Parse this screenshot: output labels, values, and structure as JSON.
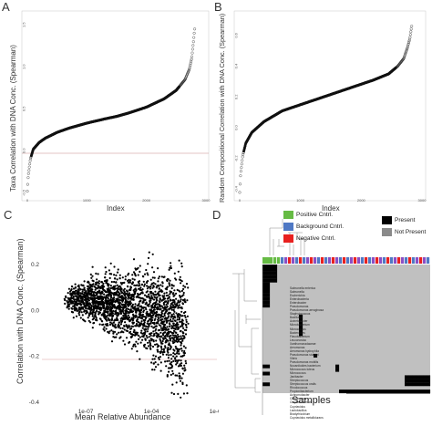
{
  "panels": {
    "a": {
      "label": "A",
      "ylabel": "Taxa Correlation with DNA Conc. (Spearman)",
      "xlabel": "Index",
      "yticks": [
        "-0.5",
        "0.0",
        "0.5",
        "1.0",
        "1.5"
      ],
      "xticks": [
        "0",
        "1000",
        "2000",
        "3000"
      ]
    },
    "b": {
      "label": "B",
      "ylabel": "Random Compositional Correlation with DNA Conc. (Spearman)",
      "xlabel": "Index",
      "yticks": [
        "-0.4",
        "-0.2",
        "0.0",
        "0.2",
        "0.4",
        "0.6"
      ],
      "xticks": [
        "0",
        "1000",
        "2000",
        "3000"
      ]
    },
    "c": {
      "label": "C",
      "ylabel": "Correlation with DNA Conc. (Spearman)",
      "xlabel": "Mean Relative Abundance",
      "yticks": [
        "0.2",
        "0.0",
        "-0.2",
        "-0.4"
      ],
      "xticks": [
        "1e-07",
        "1e-04",
        "1e-01"
      ]
    },
    "d": {
      "label": "D",
      "xlabel": "Samples"
    }
  },
  "legend": {
    "controls": [
      {
        "label": "Positive Cntrl.",
        "color": "#66bb44"
      },
      {
        "label": "Background Cntrl.",
        "color": "#4f78c4"
      },
      {
        "label": "Negative Cntrl.",
        "color": "#e8201f"
      }
    ],
    "presence": [
      {
        "label": "Present",
        "color": "#000000"
      },
      {
        "label": "Not Present",
        "color": "#8a8a8a"
      }
    ]
  },
  "taxa": [
    "Salmonella enterica",
    "Salmonella",
    "Escherichia",
    "Enterobacteria",
    "Enterobacter",
    "Pseudomonas",
    "Pseudomonas aeruginosa",
    "Staphylococcus",
    "Bacillus",
    "Acinetobacter",
    "Microbacterium",
    "Micrococcus",
    "Bacteroides",
    "Flavobacterium",
    "Leuconostoc",
    "Xanthomonadaceae",
    "Aeromonas",
    "Aeromonas hydrophila",
    "Pseudomonas stutzeri",
    "Vibrio",
    "Pseudomonas mobilis",
    "Nocardioides bacterium",
    "Micrococcus luteus",
    "Micrococcus",
    "Janibacter",
    "Streptococcus",
    "Streptococcus oralis",
    "Rhodococcus",
    "Propionibacterium",
    "Achromobacter",
    "Comamonas",
    "Corynebacterium",
    "Cupriavidus",
    "Lactobacillus",
    "Bradyrhizobium",
    "Cupriavidus metallidurans"
  ],
  "chart_data": [
    {
      "panel": "A",
      "type": "scatter",
      "xlabel": "Index",
      "ylabel": "Taxa Correlation with DNA Conc. (Spearman)",
      "xlim": [
        0,
        3000
      ],
      "ylim": [
        -0.55,
        1.6
      ],
      "x": [
        0,
        15,
        50,
        100,
        200,
        300,
        500,
        700,
        1000,
        1300,
        1500,
        1700,
        2000,
        2300,
        2500,
        2650,
        2720,
        2760,
        2790,
        2810
      ],
      "y": [
        -0.48,
        -0.3,
        -0.1,
        0.02,
        0.1,
        0.15,
        0.22,
        0.27,
        0.33,
        0.38,
        0.41,
        0.45,
        0.52,
        0.62,
        0.72,
        0.85,
        0.97,
        1.1,
        1.3,
        1.45
      ],
      "hline": 0
    },
    {
      "panel": "B",
      "type": "scatter",
      "xlabel": "Index",
      "ylabel": "Random Compositional Correlation with DNA Conc. (Spearman)",
      "xlim": [
        0,
        3000
      ],
      "ylim": [
        -0.45,
        0.7
      ],
      "x": [
        0,
        15,
        50,
        100,
        200,
        400,
        700,
        1000,
        1300,
        1600,
        1900,
        2200,
        2450,
        2600,
        2700,
        2760,
        2800,
        2830
      ],
      "y": [
        -0.42,
        -0.3,
        -0.18,
        -0.1,
        -0.03,
        0.04,
        0.11,
        0.15,
        0.19,
        0.23,
        0.27,
        0.31,
        0.35,
        0.4,
        0.45,
        0.52,
        0.58,
        0.66
      ],
      "hline": 0
    },
    {
      "panel": "C",
      "type": "scatter",
      "xlabel": "Mean Relative Abundance",
      "ylabel": "Correlation with DNA Conc. (Spearman)",
      "xlim": [
        1e-09,
        0.1
      ],
      "xscale": "log",
      "ylim": [
        -0.42,
        0.36
      ],
      "hline": -0.2
    }
  ]
}
